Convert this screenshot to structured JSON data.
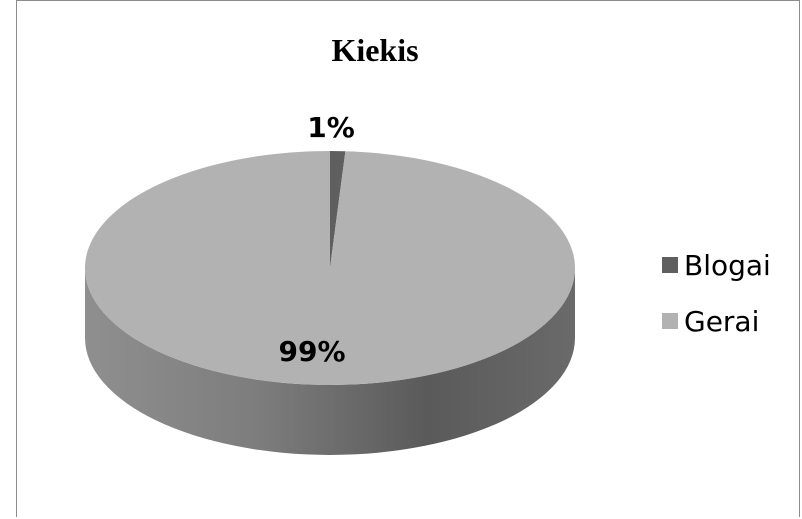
{
  "chart_data": {
    "type": "pie",
    "title": "Kiekis",
    "categories": [
      "Blogai",
      "Gerai"
    ],
    "values": [
      1,
      99
    ],
    "labels": [
      "1%",
      "99%"
    ],
    "colors": [
      "#5f5f5f",
      "#b2b2b2"
    ],
    "style": "3d",
    "legend_position": "right"
  }
}
